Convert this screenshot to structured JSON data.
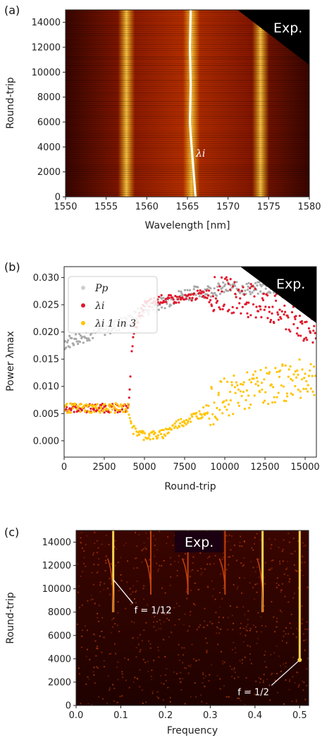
{
  "colors": {
    "heat_dark": "#2a0000",
    "heat_mid": "#c2410c",
    "heat_bright": "#ffd34d",
    "lambda_red": "#e0182b",
    "lambda_yellow": "#ffc400",
    "pp_gray": "#a8a8a8"
  },
  "chart_data": [
    {
      "panel": "(a)",
      "type": "heatmap",
      "tag": "Exp.",
      "xlabel": "Wavelength [nm]",
      "ylabel": "Round-trip",
      "xlim": [
        1550,
        1580
      ],
      "ylim": [
        0,
        15000
      ],
      "xticks": [
        1550,
        1555,
        1560,
        1565,
        1570,
        1575,
        1580
      ],
      "yticks": [
        0,
        2000,
        4000,
        6000,
        8000,
        10000,
        12000,
        14000
      ],
      "annotation": "λi",
      "bands_nm": [
        1557.5,
        1565.5,
        1574.0
      ],
      "tracked_wavelength": {
        "x_nm": [
          1566.0,
          1565.7,
          1565.4,
          1565.3,
          1565.4,
          1565.3,
          1565.4
        ],
        "y_roundtrip": [
          0,
          2500,
          5000,
          6000,
          9000,
          12000,
          15000
        ]
      }
    },
    {
      "panel": "(b)",
      "type": "scatter",
      "tag": "Exp.",
      "xlabel": "Round-trip",
      "ylabel": "Power λmax",
      "xlim": [
        0,
        15700
      ],
      "ylim": [
        -0.003,
        0.032
      ],
      "xticks": [
        0,
        2500,
        5000,
        7500,
        10000,
        12500,
        15000
      ],
      "yticks": [
        0.0,
        0.005,
        0.01,
        0.015,
        0.02,
        0.025,
        0.03
      ],
      "legend": [
        "Pp",
        "λi",
        "λi 1 in 3"
      ],
      "legend_position": "top-left",
      "series": [
        {
          "name": "Pp",
          "x": [
            0,
            2000,
            4000,
            5000,
            7500,
            10000,
            12500,
            15700
          ],
          "y": [
            0.018,
            0.02,
            0.022,
            0.024,
            0.027,
            0.028,
            0.028,
            0.029
          ]
        },
        {
          "name": "λi",
          "x": [
            0,
            2000,
            4000,
            4300,
            5000,
            6000,
            7500,
            8500,
            10000,
            12500,
            15700
          ],
          "y": [
            0.006,
            0.006,
            0.006,
            0.02,
            0.025,
            0.026,
            0.026,
            0.027,
            0.027,
            0.025,
            0.02
          ]
        },
        {
          "name": "λi 1 in 3",
          "x": [
            0,
            2000,
            4000,
            4300,
            5000,
            6000,
            7000,
            8500,
            10000,
            12500,
            15700
          ],
          "y": [
            0.006,
            0.006,
            0.006,
            0.002,
            0.001,
            0.001,
            0.003,
            0.005,
            0.008,
            0.01,
            0.012
          ]
        }
      ]
    },
    {
      "panel": "(c)",
      "type": "heatmap",
      "tag": "Exp.",
      "xlabel": "Frequency",
      "ylabel": "Round-trip",
      "xlim": [
        0,
        0.52
      ],
      "ylim": [
        0,
        15000
      ],
      "xticks": [
        0.0,
        0.1,
        0.2,
        0.3,
        0.4,
        0.5
      ],
      "yticks": [
        0,
        2000,
        4000,
        6000,
        8000,
        10000,
        12000,
        14000
      ],
      "annotations": [
        {
          "text": "f = 1/12",
          "x": 0.083,
          "y": 10800
        },
        {
          "text": "f = 1/2",
          "x": 0.5,
          "y": 3900
        }
      ],
      "frequency_lines": [
        0.083,
        0.167,
        0.25,
        0.333,
        0.417,
        0.5
      ]
    }
  ]
}
